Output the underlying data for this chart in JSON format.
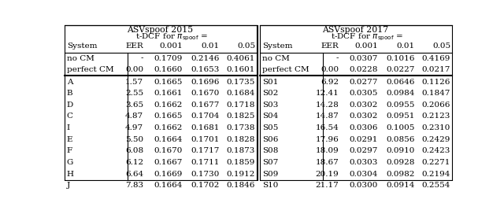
{
  "title_left": "ASVspoof 2015",
  "title_right": "ASVspoof 2017",
  "font_size": 7.5,
  "left_rows": [
    [
      "no CM",
      "-",
      "0.1709",
      "0.2146",
      "0.4061"
    ],
    [
      "perfect CM",
      "0.00",
      "0.1660",
      "0.1653",
      "0.1601"
    ],
    [
      "A",
      "1.57",
      "0.1665",
      "0.1696",
      "0.1735"
    ],
    [
      "B",
      "2.55",
      "0.1661",
      "0.1670",
      "0.1684"
    ],
    [
      "D",
      "3.65",
      "0.1662",
      "0.1677",
      "0.1718"
    ],
    [
      "C",
      "4.87",
      "0.1665",
      "0.1704",
      "0.1825"
    ],
    [
      "I",
      "4.97",
      "0.1662",
      "0.1681",
      "0.1738"
    ],
    [
      "E",
      "5.50",
      "0.1664",
      "0.1701",
      "0.1828"
    ],
    [
      "F",
      "6.08",
      "0.1670",
      "0.1717",
      "0.1873"
    ],
    [
      "G",
      "6.12",
      "0.1667",
      "0.1711",
      "0.1859"
    ],
    [
      "H",
      "6.64",
      "0.1669",
      "0.1730",
      "0.1912"
    ],
    [
      "J",
      "7.83",
      "0.1664",
      "0.1702",
      "0.1846"
    ]
  ],
  "right_rows": [
    [
      "no CM",
      "-",
      "0.0307",
      "0.1016",
      "0.4169"
    ],
    [
      "perfect CM",
      "0.00",
      "0.0228",
      "0.0227",
      "0.0217"
    ],
    [
      "S01",
      "6.92",
      "0.0277",
      "0.0646",
      "0.1126"
    ],
    [
      "S02",
      "12.41",
      "0.0305",
      "0.0984",
      "0.1847"
    ],
    [
      "S03",
      "14.28",
      "0.0302",
      "0.0955",
      "0.2066"
    ],
    [
      "S04",
      "14.87",
      "0.0302",
      "0.0951",
      "0.2123"
    ],
    [
      "S05",
      "16.54",
      "0.0306",
      "0.1005",
      "0.2310"
    ],
    [
      "S06",
      "17.96",
      "0.0291",
      "0.0856",
      "0.2429"
    ],
    [
      "S08",
      "18.09",
      "0.0297",
      "0.0910",
      "0.2423"
    ],
    [
      "S07",
      "18.67",
      "0.0303",
      "0.0928",
      "0.2271"
    ],
    [
      "S09",
      "20.19",
      "0.0304",
      "0.0982",
      "0.2194"
    ],
    [
      "S10",
      "21.17",
      "0.0300",
      "0.0914",
      "0.2554"
    ]
  ]
}
